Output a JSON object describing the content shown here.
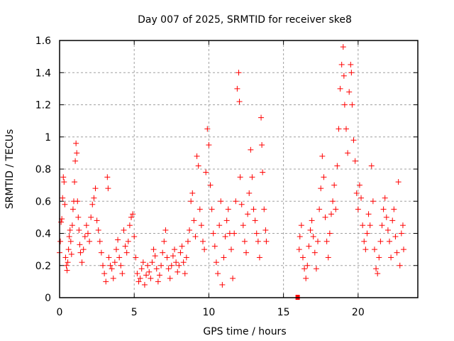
{
  "chart_data": {
    "type": "scatter",
    "title": "Day 007 of 2025, SRMTID for receiver ske8",
    "xlabel": "GPS time / hours",
    "ylabel": "SRMTID / TECUs",
    "xlim": [
      0,
      24
    ],
    "ylim": [
      0,
      1.6
    ],
    "xticks": [
      "0",
      "5",
      "10",
      "15",
      "20"
    ],
    "xtick_values": [
      0,
      5,
      10,
      15,
      20
    ],
    "yticks": [
      "0",
      "0.2",
      "0.4",
      "0.6",
      "0.8",
      "1",
      "1.2",
      "1.4",
      "1.6"
    ],
    "ytick_values": [
      0,
      0.2,
      0.4,
      0.6,
      0.8,
      1.0,
      1.2,
      1.4,
      1.6
    ],
    "grid": true,
    "marker": "plus",
    "color": "#ff0000",
    "series": [
      {
        "name": "SRMTID",
        "points": [
          [
            0.0,
            0.28
          ],
          [
            0.05,
            0.35
          ],
          [
            0.1,
            0.47
          ],
          [
            0.15,
            0.49
          ],
          [
            0.2,
            0.62
          ],
          [
            0.25,
            0.75
          ],
          [
            0.3,
            0.72
          ],
          [
            0.35,
            0.58
          ],
          [
            0.4,
            0.25
          ],
          [
            0.45,
            0.2
          ],
          [
            0.5,
            0.17
          ],
          [
            0.55,
            0.22
          ],
          [
            0.6,
            0.3
          ],
          [
            0.65,
            0.38
          ],
          [
            0.7,
            0.42
          ],
          [
            0.75,
            0.35
          ],
          [
            0.8,
            0.27
          ],
          [
            0.85,
            0.45
          ],
          [
            0.9,
            0.55
          ],
          [
            0.95,
            0.6
          ],
          [
            1.0,
            0.72
          ],
          [
            1.05,
            0.85
          ],
          [
            1.1,
            0.96
          ],
          [
            1.15,
            0.9
          ],
          [
            1.2,
            0.6
          ],
          [
            1.25,
            0.5
          ],
          [
            1.3,
            0.42
          ],
          [
            1.35,
            0.33
          ],
          [
            1.4,
            0.28
          ],
          [
            1.5,
            0.22
          ],
          [
            1.6,
            0.3
          ],
          [
            1.7,
            0.38
          ],
          [
            1.8,
            0.45
          ],
          [
            1.9,
            0.4
          ],
          [
            2.0,
            0.35
          ],
          [
            2.1,
            0.5
          ],
          [
            2.2,
            0.58
          ],
          [
            2.3,
            0.62
          ],
          [
            2.4,
            0.68
          ],
          [
            2.5,
            0.48
          ],
          [
            2.6,
            0.42
          ],
          [
            2.7,
            0.35
          ],
          [
            2.8,
            0.28
          ],
          [
            2.9,
            0.2
          ],
          [
            3.0,
            0.15
          ],
          [
            3.1,
            0.1
          ],
          [
            3.2,
            0.75
          ],
          [
            3.25,
            0.68
          ],
          [
            3.3,
            0.25
          ],
          [
            3.4,
            0.2
          ],
          [
            3.5,
            0.18
          ],
          [
            3.6,
            0.12
          ],
          [
            3.7,
            0.22
          ],
          [
            3.8,
            0.3
          ],
          [
            3.9,
            0.36
          ],
          [
            4.0,
            0.25
          ],
          [
            4.1,
            0.2
          ],
          [
            4.2,
            0.15
          ],
          [
            4.3,
            0.42
          ],
          [
            4.4,
            0.32
          ],
          [
            4.5,
            0.28
          ],
          [
            4.6,
            0.35
          ],
          [
            4.7,
            0.45
          ],
          [
            4.8,
            0.5
          ],
          [
            4.9,
            0.52
          ],
          [
            5.0,
            0.38
          ],
          [
            5.1,
            0.25
          ],
          [
            5.2,
            0.15
          ],
          [
            5.3,
            0.1
          ],
          [
            5.4,
            0.12
          ],
          [
            5.5,
            0.18
          ],
          [
            5.6,
            0.22
          ],
          [
            5.7,
            0.08
          ],
          [
            5.8,
            0.14
          ],
          [
            5.9,
            0.2
          ],
          [
            6.0,
            0.16
          ],
          [
            6.1,
            0.12
          ],
          [
            6.2,
            0.22
          ],
          [
            6.3,
            0.3
          ],
          [
            6.4,
            0.26
          ],
          [
            6.5,
            0.18
          ],
          [
            6.6,
            0.1
          ],
          [
            6.7,
            0.14
          ],
          [
            6.8,
            0.2
          ],
          [
            6.9,
            0.28
          ],
          [
            7.0,
            0.35
          ],
          [
            7.1,
            0.42
          ],
          [
            7.2,
            0.25
          ],
          [
            7.3,
            0.18
          ],
          [
            7.4,
            0.12
          ],
          [
            7.5,
            0.2
          ],
          [
            7.6,
            0.26
          ],
          [
            7.7,
            0.3
          ],
          [
            7.8,
            0.22
          ],
          [
            7.9,
            0.16
          ],
          [
            8.0,
            0.2
          ],
          [
            8.1,
            0.28
          ],
          [
            8.2,
            0.32
          ],
          [
            8.3,
            0.22
          ],
          [
            8.4,
            0.15
          ],
          [
            8.5,
            0.25
          ],
          [
            8.6,
            0.35
          ],
          [
            8.7,
            0.42
          ],
          [
            8.8,
            0.6
          ],
          [
            8.9,
            0.65
          ],
          [
            9.0,
            0.48
          ],
          [
            9.1,
            0.38
          ],
          [
            9.2,
            0.88
          ],
          [
            9.3,
            0.82
          ],
          [
            9.4,
            0.55
          ],
          [
            9.5,
            0.45
          ],
          [
            9.6,
            0.35
          ],
          [
            9.7,
            0.3
          ],
          [
            9.8,
            0.78
          ],
          [
            9.9,
            1.05
          ],
          [
            10.0,
            0.95
          ],
          [
            10.1,
            0.7
          ],
          [
            10.2,
            0.55
          ],
          [
            10.3,
            0.4
          ],
          [
            10.4,
            0.32
          ],
          [
            10.5,
            0.22
          ],
          [
            10.6,
            0.15
          ],
          [
            10.7,
            0.45
          ],
          [
            10.8,
            0.6
          ],
          [
            10.9,
            0.08
          ],
          [
            11.0,
            0.25
          ],
          [
            11.1,
            0.38
          ],
          [
            11.2,
            0.48
          ],
          [
            11.3,
            0.55
          ],
          [
            11.4,
            0.4
          ],
          [
            11.5,
            0.3
          ],
          [
            11.6,
            0.12
          ],
          [
            11.7,
            0.4
          ],
          [
            11.8,
            0.6
          ],
          [
            11.9,
            1.3
          ],
          [
            12.0,
            1.4
          ],
          [
            12.05,
            1.22
          ],
          [
            12.1,
            0.75
          ],
          [
            12.2,
            0.58
          ],
          [
            12.3,
            0.45
          ],
          [
            12.4,
            0.35
          ],
          [
            12.5,
            0.28
          ],
          [
            12.6,
            0.52
          ],
          [
            12.7,
            0.65
          ],
          [
            12.8,
            0.92
          ],
          [
            12.9,
            0.75
          ],
          [
            13.0,
            0.55
          ],
          [
            13.1,
            0.48
          ],
          [
            13.2,
            0.4
          ],
          [
            13.3,
            0.35
          ],
          [
            13.4,
            0.25
          ],
          [
            13.5,
            1.12
          ],
          [
            13.55,
            0.95
          ],
          [
            13.6,
            0.78
          ],
          [
            13.7,
            0.55
          ],
          [
            13.8,
            0.42
          ],
          [
            13.85,
            0.35
          ],
          [
            16.05,
            0.3
          ],
          [
            16.1,
            0.38
          ],
          [
            16.2,
            0.45
          ],
          [
            16.3,
            0.25
          ],
          [
            16.4,
            0.18
          ],
          [
            16.5,
            0.12
          ],
          [
            16.6,
            0.2
          ],
          [
            16.7,
            0.32
          ],
          [
            16.8,
            0.42
          ],
          [
            16.9,
            0.48
          ],
          [
            17.0,
            0.38
          ],
          [
            17.1,
            0.28
          ],
          [
            17.2,
            0.18
          ],
          [
            17.3,
            0.35
          ],
          [
            17.4,
            0.55
          ],
          [
            17.5,
            0.68
          ],
          [
            17.6,
            0.88
          ],
          [
            17.7,
            0.75
          ],
          [
            17.8,
            0.5
          ],
          [
            17.9,
            0.35
          ],
          [
            18.0,
            0.25
          ],
          [
            18.1,
            0.4
          ],
          [
            18.2,
            0.52
          ],
          [
            18.3,
            0.6
          ],
          [
            18.4,
            0.7
          ],
          [
            18.5,
            0.55
          ],
          [
            18.6,
            0.82
          ],
          [
            18.7,
            1.05
          ],
          [
            18.8,
            1.3
          ],
          [
            18.9,
            1.45
          ],
          [
            19.0,
            1.56
          ],
          [
            19.05,
            1.38
          ],
          [
            19.1,
            1.2
          ],
          [
            19.2,
            1.05
          ],
          [
            19.3,
            0.9
          ],
          [
            19.4,
            1.28
          ],
          [
            19.5,
            1.45
          ],
          [
            19.55,
            1.4
          ],
          [
            19.6,
            1.2
          ],
          [
            19.7,
            0.98
          ],
          [
            19.8,
            0.85
          ],
          [
            19.9,
            0.65
          ],
          [
            20.0,
            0.55
          ],
          [
            20.1,
            0.7
          ],
          [
            20.2,
            0.62
          ],
          [
            20.3,
            0.45
          ],
          [
            20.4,
            0.35
          ],
          [
            20.5,
            0.3
          ],
          [
            20.6,
            0.4
          ],
          [
            20.7,
            0.52
          ],
          [
            20.8,
            0.45
          ],
          [
            20.9,
            0.82
          ],
          [
            21.0,
            0.6
          ],
          [
            21.1,
            0.3
          ],
          [
            21.2,
            0.18
          ],
          [
            21.3,
            0.15
          ],
          [
            21.4,
            0.25
          ],
          [
            21.5,
            0.35
          ],
          [
            21.6,
            0.45
          ],
          [
            21.7,
            0.55
          ],
          [
            21.8,
            0.62
          ],
          [
            21.9,
            0.5
          ],
          [
            22.0,
            0.42
          ],
          [
            22.1,
            0.35
          ],
          [
            22.2,
            0.25
          ],
          [
            22.3,
            0.48
          ],
          [
            22.4,
            0.55
          ],
          [
            22.5,
            0.38
          ],
          [
            22.6,
            0.28
          ],
          [
            22.7,
            0.72
          ],
          [
            22.8,
            0.2
          ],
          [
            22.9,
            0.4
          ],
          [
            23.0,
            0.45
          ],
          [
            23.05,
            0.3
          ]
        ]
      },
      {
        "name": "zero-marker",
        "points": [
          [
            15.95,
            0.0
          ]
        ]
      }
    ]
  }
}
